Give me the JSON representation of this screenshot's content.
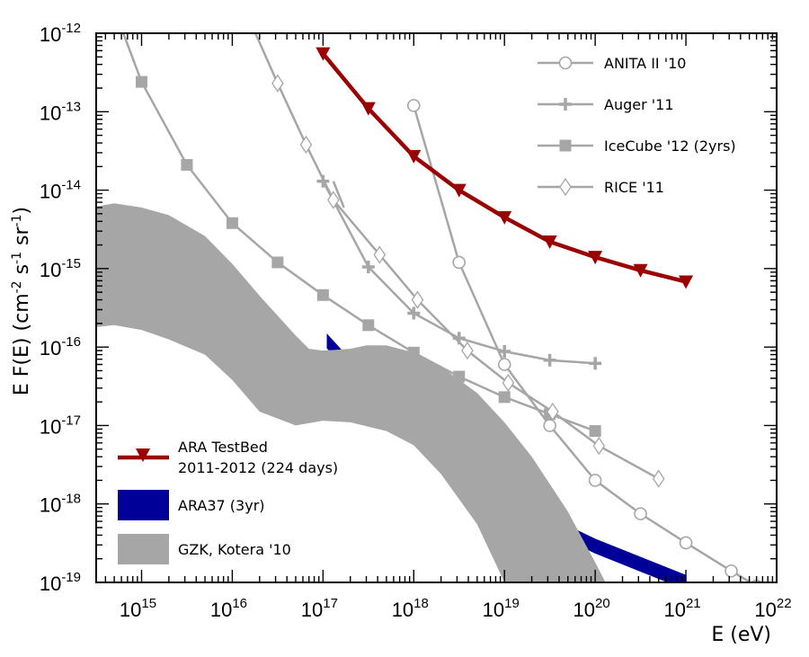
{
  "chart_data": {
    "type": "line",
    "xscale": "log",
    "yscale": "log",
    "xlim": [
      316000000000000.0,
      1e+22
    ],
    "ylim": [
      1e-19,
      1e-12
    ],
    "xlabel": {
      "main": "E (eV)"
    },
    "ylabel": {
      "main": "E F(E) (cm",
      "exp1": "-2",
      "mid1": " s",
      "exp2": "-1",
      "mid2": " sr",
      "exp3": "-1",
      "end": ")"
    },
    "x_ticks": [
      {
        "value": 1000000000000000.0,
        "base": "10",
        "exp": "15"
      },
      {
        "value": 1e+16,
        "base": "10",
        "exp": "16"
      },
      {
        "value": 1e+17,
        "base": "10",
        "exp": "17"
      },
      {
        "value": 1e+18,
        "base": "10",
        "exp": "18"
      },
      {
        "value": 1e+19,
        "base": "10",
        "exp": "19"
      },
      {
        "value": 1e+20,
        "base": "10",
        "exp": "20"
      },
      {
        "value": 1e+21,
        "base": "10",
        "exp": "21"
      },
      {
        "value": 1e+22,
        "base": "10",
        "exp": "22"
      }
    ],
    "y_ticks": [
      {
        "value": 1e-12,
        "base": "10",
        "exp": "-12"
      },
      {
        "value": 1e-13,
        "base": "10",
        "exp": "-13"
      },
      {
        "value": 1e-14,
        "base": "10",
        "exp": "-14"
      },
      {
        "value": 1e-15,
        "base": "10",
        "exp": "-15"
      },
      {
        "value": 1e-16,
        "base": "10",
        "exp": "-16"
      },
      {
        "value": 1e-17,
        "base": "10",
        "exp": "-17"
      },
      {
        "value": 1e-18,
        "base": "10",
        "exp": "-18"
      },
      {
        "value": 1e-19,
        "base": "10",
        "exp": "-19"
      }
    ],
    "series": [
      {
        "name": "ANITA II '10",
        "marker": "open-circle",
        "color": "#a6a6a6",
        "x": [
          1e+18,
          3.16e+18,
          1e+19,
          3.16e+19,
          1e+20,
          3.16e+20,
          1e+21,
          3.16e+21,
          6e+21
        ],
        "y": [
          1.2e-13,
          1.2e-15,
          6e-17,
          1e-17,
          2e-18,
          7.5e-19,
          3.2e-19,
          1.4e-19,
          9e-20
        ]
      },
      {
        "name": "Auger '11",
        "marker": "plus",
        "color": "#a6a6a6",
        "x": [
          1e+17,
          3.16e+17,
          1e+18,
          3.16e+18,
          1e+19,
          3.16e+19,
          1e+20
        ],
        "y": [
          1.3e-14,
          1.05e-15,
          2.7e-16,
          1.3e-16,
          8.8e-17,
          6.8e-17,
          6.2e-17
        ]
      },
      {
        "name": "IceCube '12 (2yrs)",
        "marker": "filled-square",
        "color": "#a6a6a6",
        "x": [
          1000000000000000.0,
          3160000000000000.0,
          1e+16,
          3.16e+16,
          1e+17,
          3.16e+17,
          1e+18,
          3.16e+18,
          1e+19,
          3.16e+19,
          1e+20
        ],
        "y": [
          2.4e-13,
          2.1e-14,
          3.8e-15,
          1.2e-15,
          4.6e-16,
          1.9e-16,
          8.5e-17,
          4.2e-17,
          2.3e-17,
          1.4e-17,
          8.5e-18
        ]
      },
      {
        "name": "RICE '11",
        "marker": "open-diamond",
        "color": "#a6a6a6",
        "x": [
          3.16e+16,
          6.5e+16,
          1.3e+17,
          4.2e+17,
          1.1e+18,
          3.9e+18,
          1.1e+19,
          3.4e+19,
          1.1e+20,
          5e+20
        ],
        "y": [
          2.3e-13,
          3.8e-14,
          7.5e-15,
          1.5e-15,
          4e-16,
          9e-17,
          3.5e-17,
          1.5e-17,
          5.5e-18,
          2.1e-18
        ]
      },
      {
        "name": "ARA TestBed",
        "name2": "2011-2012 (224 days)",
        "marker": "filled-triangle-down",
        "color": "#9b0000",
        "x": [
          1e+17,
          3.16e+17,
          1e+18,
          3.16e+18,
          1e+19,
          3.16e+19,
          1e+20,
          3.16e+20,
          1e+21
        ],
        "y": [
          5.5e-13,
          1.1e-13,
          2.7e-14,
          1e-14,
          4.5e-15,
          2.2e-15,
          1.4e-15,
          9.5e-16,
          6.8e-16
        ]
      }
    ],
    "curves_no_marker": [
      {
        "name": "ANITA-early",
        "color": "#a6a6a6",
        "x": [
          630000000000000.0,
          1000000000000000.0
        ],
        "y": [
          1e-12,
          2.4e-13
        ]
      },
      {
        "name": "RICE-early",
        "color": "#a6a6a6",
        "x": [
          1.8e+16,
          3.16e+16
        ],
        "y": [
          1e-12,
          2.3e-13
        ]
      },
      {
        "name": "Auger-branch",
        "color": "#a6a6a6",
        "x": [
          1.7e+17,
          1.3e+17
        ],
        "y": [
          6e-15,
          1.3e-14
        ]
      }
    ],
    "bands": [
      {
        "name": "ARA37 (3yr)",
        "color": "#000099",
        "center_x": [
          1.1e+17,
          1e+18,
          1e+19,
          1e+20,
          1e+21
        ],
        "center_y": [
          1.2e-16,
          7.2e-18,
          1.05e-18,
          2.9e-19,
          1e-19
        ],
        "thickness_dex": 0.19
      },
      {
        "name": "GZK, Kotera '10",
        "color": "#a6a6a6",
        "upper_x": [
          316000000000000.0,
          500000000000000.0,
          1000000000000000.0,
          2000000000000000.0,
          5000000000000000.0,
          1e+16,
          2e+16,
          5e+16,
          7e+16,
          1e+17,
          2e+17,
          3e+17,
          5e+17,
          1e+18,
          2e+18,
          5e+18,
          1e+19,
          2e+19,
          5e+19,
          1e+20,
          1.3e+20
        ],
        "upper_y": [
          6.2e-15,
          6.8e-15,
          6e-15,
          4.8e-15,
          2.6e-15,
          1.15e-15,
          4.5e-16,
          1.4e-16,
          9.5e-17,
          9e-17,
          9.5e-17,
          1.05e-16,
          1.05e-16,
          8.5e-17,
          5.6e-17,
          2.6e-17,
          1.1e-17,
          4e-18,
          8e-19,
          1.8e-19,
          1e-19
        ],
        "lower_x": [
          316000000000000.0,
          500000000000000.0,
          1000000000000000.0,
          2000000000000000.0,
          5000000000000000.0,
          1e+16,
          2e+16,
          5e+16,
          1e+17,
          2e+17,
          5e+17,
          1e+18,
          2e+18,
          5e+18,
          1e+19
        ],
        "lower_y": [
          1.8e-16,
          1.9e-16,
          1.65e-16,
          1.25e-16,
          8e-17,
          3.8e-17,
          1.5e-17,
          1e-17,
          1.15e-17,
          1.1e-17,
          8.5e-18,
          5.6e-18,
          2.4e-18,
          5.5e-19,
          1e-19
        ]
      }
    ],
    "legend_top_right": [
      {
        "label": "ANITA II '10",
        "marker": "open-circle"
      },
      {
        "label": "Auger '11",
        "marker": "plus"
      },
      {
        "label": "IceCube '12 (2yrs)",
        "marker": "filled-square"
      },
      {
        "label": "RICE '11",
        "marker": "open-diamond"
      }
    ],
    "legend_bottom_left": [
      {
        "label": "ARA TestBed",
        "label2": "2011-2012 (224 days)",
        "kind": "line-triangle"
      },
      {
        "label": "ARA37 (3yr)",
        "kind": "fill-blue"
      },
      {
        "label": "GZK, Kotera '10",
        "kind": "fill-gray"
      }
    ]
  }
}
